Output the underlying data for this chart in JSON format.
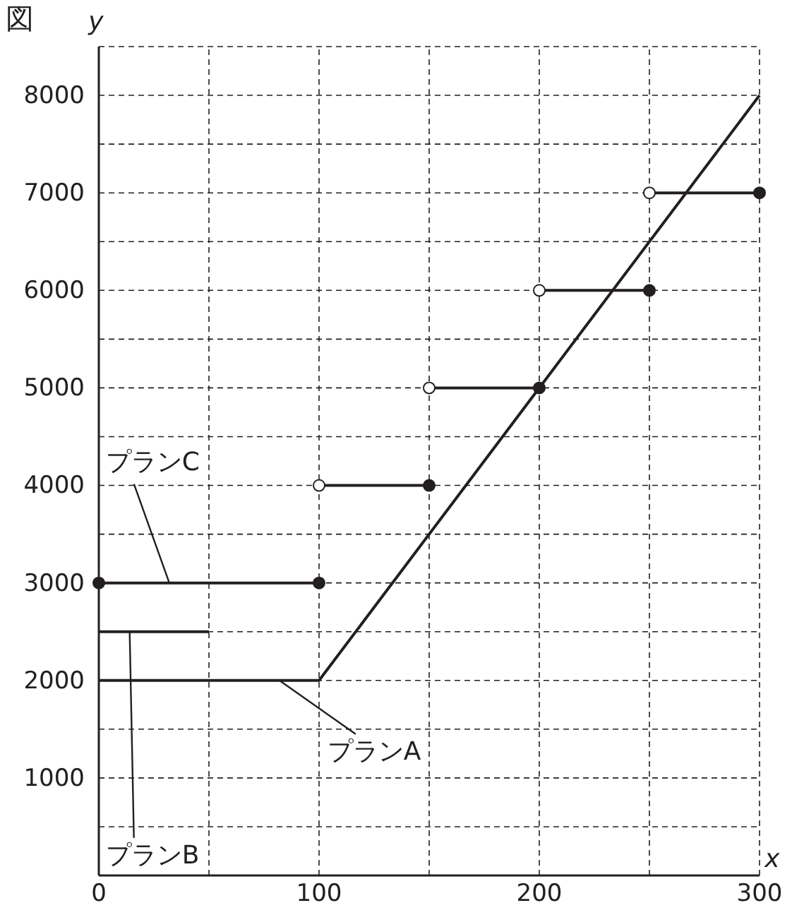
{
  "chart_data": {
    "type": "line",
    "title": "図",
    "xlabel": "x",
    "ylabel": "y",
    "xlim": [
      0,
      300
    ],
    "xticks": [
      0,
      {
        "value": 50,
        "label": null
      },
      100,
      {
        "value": 150,
        "label": null
      },
      200,
      {
        "value": 250,
        "label": null
      },
      300
    ],
    "ylim": [
      0,
      8500
    ],
    "yticks": [
      {
        "value": 500,
        "label": null
      },
      1000,
      {
        "value": 1500,
        "label": null
      },
      2000,
      {
        "value": 2500,
        "label": null
      },
      3000,
      {
        "value": 3500,
        "label": null
      },
      4000,
      {
        "value": 4500,
        "label": null
      },
      5000,
      {
        "value": 5500,
        "label": null
      },
      6000,
      {
        "value": 6500,
        "label": null
      },
      7000,
      {
        "value": 7500,
        "label": null
      },
      8000,
      {
        "value": 8500,
        "label": null
      }
    ],
    "grid": true,
    "series": [
      {
        "name": "プランA",
        "x": [
          0,
          100,
          300
        ],
        "values": [
          2000,
          2000,
          8000
        ],
        "color": "#231f20"
      },
      {
        "name": "プランB",
        "x": [
          0,
          50
        ],
        "values": [
          2500,
          2500
        ],
        "color": "#231f20"
      },
      {
        "name": "プランC",
        "x": [
          0,
          100,
          100,
          150,
          150,
          200,
          200,
          250,
          250,
          300
        ],
        "values": [
          3000,
          3000,
          4000,
          4000,
          5000,
          5000,
          6000,
          6000,
          7000,
          7000
        ],
        "color": "#231f20"
      },
      {
        "type": "scatter",
        "marker": "circle",
        "x": [
          0,
          100,
          150,
          200,
          250,
          300
        ],
        "values": [
          3000,
          3000,
          4000,
          5000,
          6000,
          7000
        ],
        "color": "#231f20"
      },
      {
        "type": "scatter",
        "marker": "circle",
        "x": [
          100,
          150,
          200,
          250
        ],
        "values": [
          4000,
          5000,
          6000,
          7000
        ],
        "color": "#ffffff"
      }
    ]
  }
}
